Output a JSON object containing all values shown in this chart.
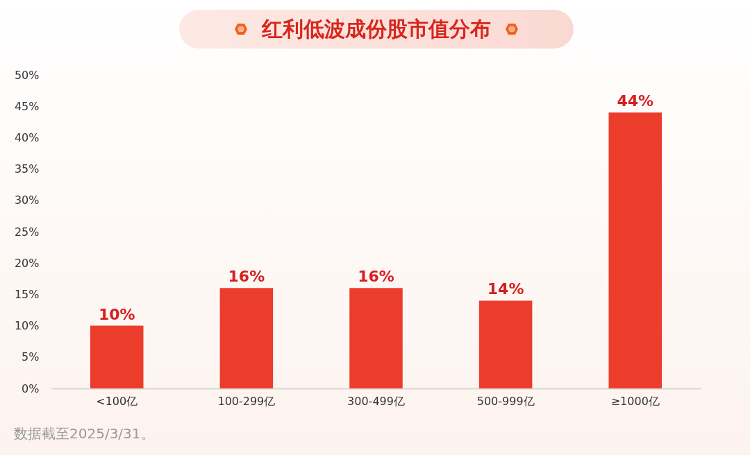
{
  "chart_data": {
    "type": "bar",
    "title": "红利低波成份股市值分布",
    "categories": [
      "<100亿",
      "100-299亿",
      "300-499亿",
      "500-999亿",
      "≥1000亿"
    ],
    "values": [
      10,
      16,
      16,
      14,
      44
    ],
    "color": "#ec3d2c",
    "value_labels": [
      "10%",
      "16%",
      "16%",
      "14%",
      "44%"
    ],
    "ylim": [
      0,
      50
    ],
    "yticks": [
      {
        "value": 0,
        "label": "0%"
      },
      {
        "value": 5,
        "label": "5%"
      },
      {
        "value": 10,
        "label": "10%"
      },
      {
        "value": 15,
        "label": "15%"
      },
      {
        "value": 20,
        "label": "20%"
      },
      {
        "value": 25,
        "label": "25%"
      },
      {
        "value": 30,
        "label": "30%"
      },
      {
        "value": 35,
        "label": "35%"
      },
      {
        "value": 40,
        "label": "40%"
      },
      {
        "value": 45,
        "label": "45%"
      },
      {
        "value": 50,
        "label": "50%"
      }
    ],
    "grid": false,
    "annotations": [
      "数据截至2025/3/31。"
    ]
  }
}
